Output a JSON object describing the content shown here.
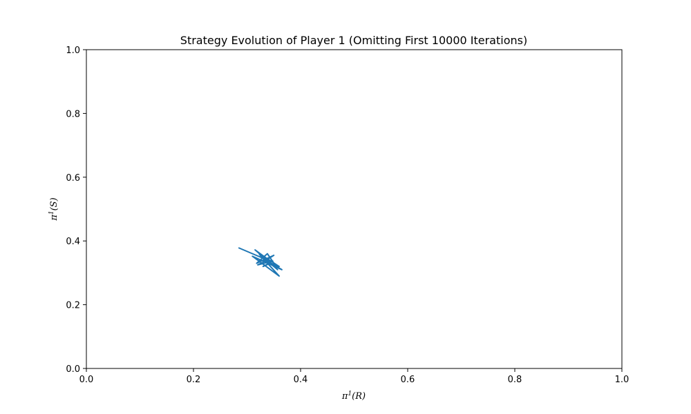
{
  "chart_data": {
    "type": "line",
    "title": "Strategy Evolution of Player 1 (Omitting First 10000 Iterations)",
    "xlabel": {
      "base": "π",
      "sup": "1",
      "arg": "(R)"
    },
    "ylabel": {
      "base": "π",
      "sup": "1",
      "arg": "(S)"
    },
    "xlim": [
      0.0,
      1.0
    ],
    "ylim": [
      0.0,
      1.0
    ],
    "xticks": [
      "0.0",
      "0.2",
      "0.4",
      "0.6",
      "0.8",
      "1.0"
    ],
    "yticks": [
      "0.0",
      "0.2",
      "0.4",
      "0.6",
      "0.8",
      "1.0"
    ],
    "grid": false,
    "series": [
      {
        "color": "#1f77b4",
        "x": [
          0.285,
          0.345,
          0.315,
          0.357,
          0.323,
          0.36,
          0.31,
          0.365,
          0.335,
          0.325,
          0.35,
          0.318,
          0.338,
          0.355,
          0.33,
          0.36,
          0.34,
          0.32,
          0.348,
          0.33,
          0.343,
          0.337
        ],
        "y": [
          0.378,
          0.335,
          0.372,
          0.31,
          0.358,
          0.29,
          0.352,
          0.31,
          0.34,
          0.328,
          0.355,
          0.33,
          0.36,
          0.318,
          0.34,
          0.32,
          0.342,
          0.325,
          0.337,
          0.32,
          0.33,
          0.334
        ]
      }
    ]
  }
}
